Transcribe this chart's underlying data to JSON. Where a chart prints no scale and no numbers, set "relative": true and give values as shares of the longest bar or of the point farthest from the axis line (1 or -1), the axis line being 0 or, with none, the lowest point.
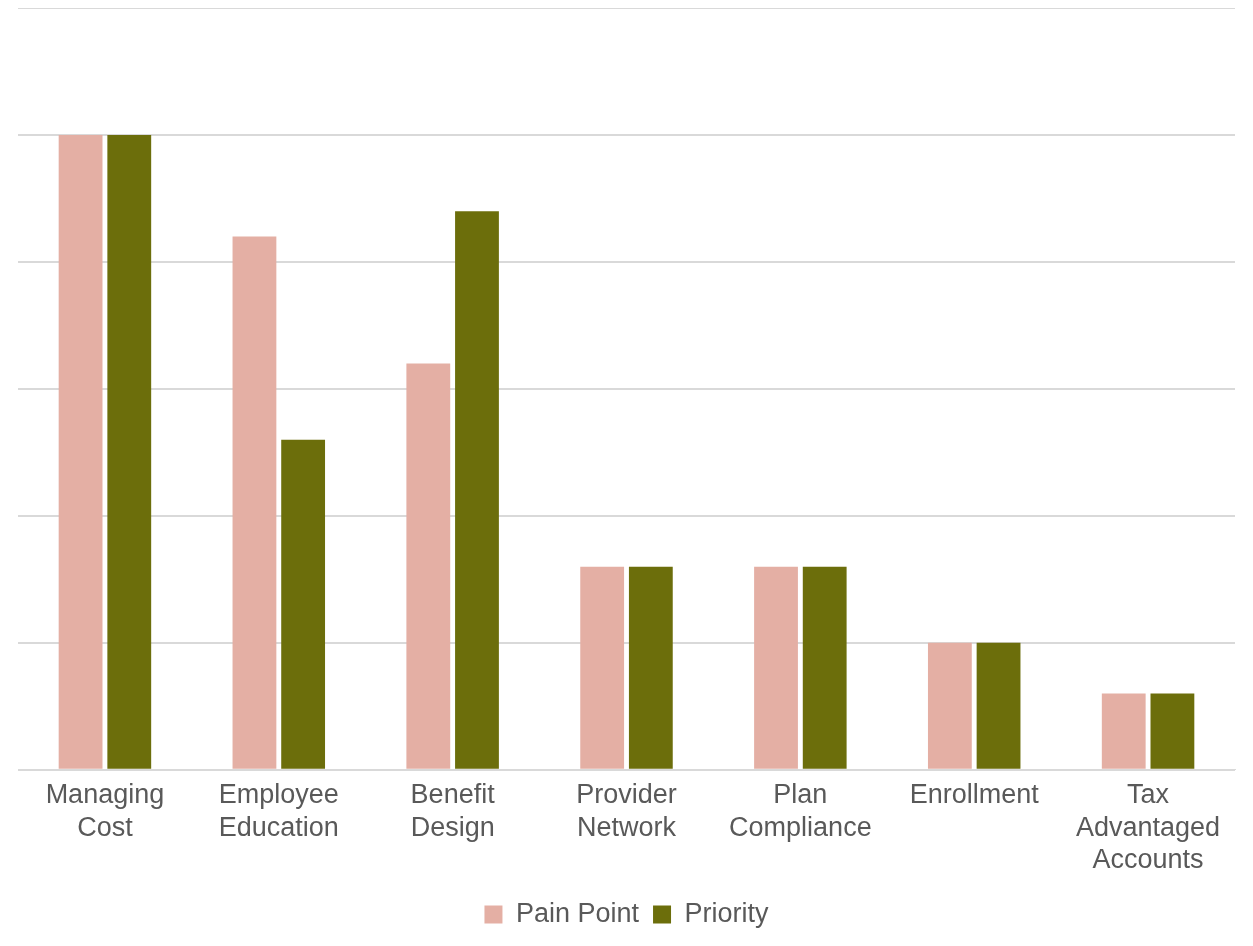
{
  "chart_data": {
    "type": "bar",
    "relative": true,
    "grid": "y",
    "legend": "bottom",
    "categories": [
      "Managing Cost",
      "Employee Education",
      "Benefit Design",
      "Provider Network",
      "Plan Compliance",
      "Enrollment",
      "Tax Advantaged Accounts"
    ],
    "series": [
      {
        "name": "Pain Point",
        "color": "#e4afa4",
        "values": [
          1,
          0.84,
          0.64,
          0.32,
          0.32,
          0.2,
          0.12
        ]
      },
      {
        "name": "Priority",
        "color": "#6c6e0b",
        "values": [
          1,
          0.52,
          0.88,
          0.32,
          0.32,
          0.2,
          0.12
        ]
      }
    ]
  }
}
